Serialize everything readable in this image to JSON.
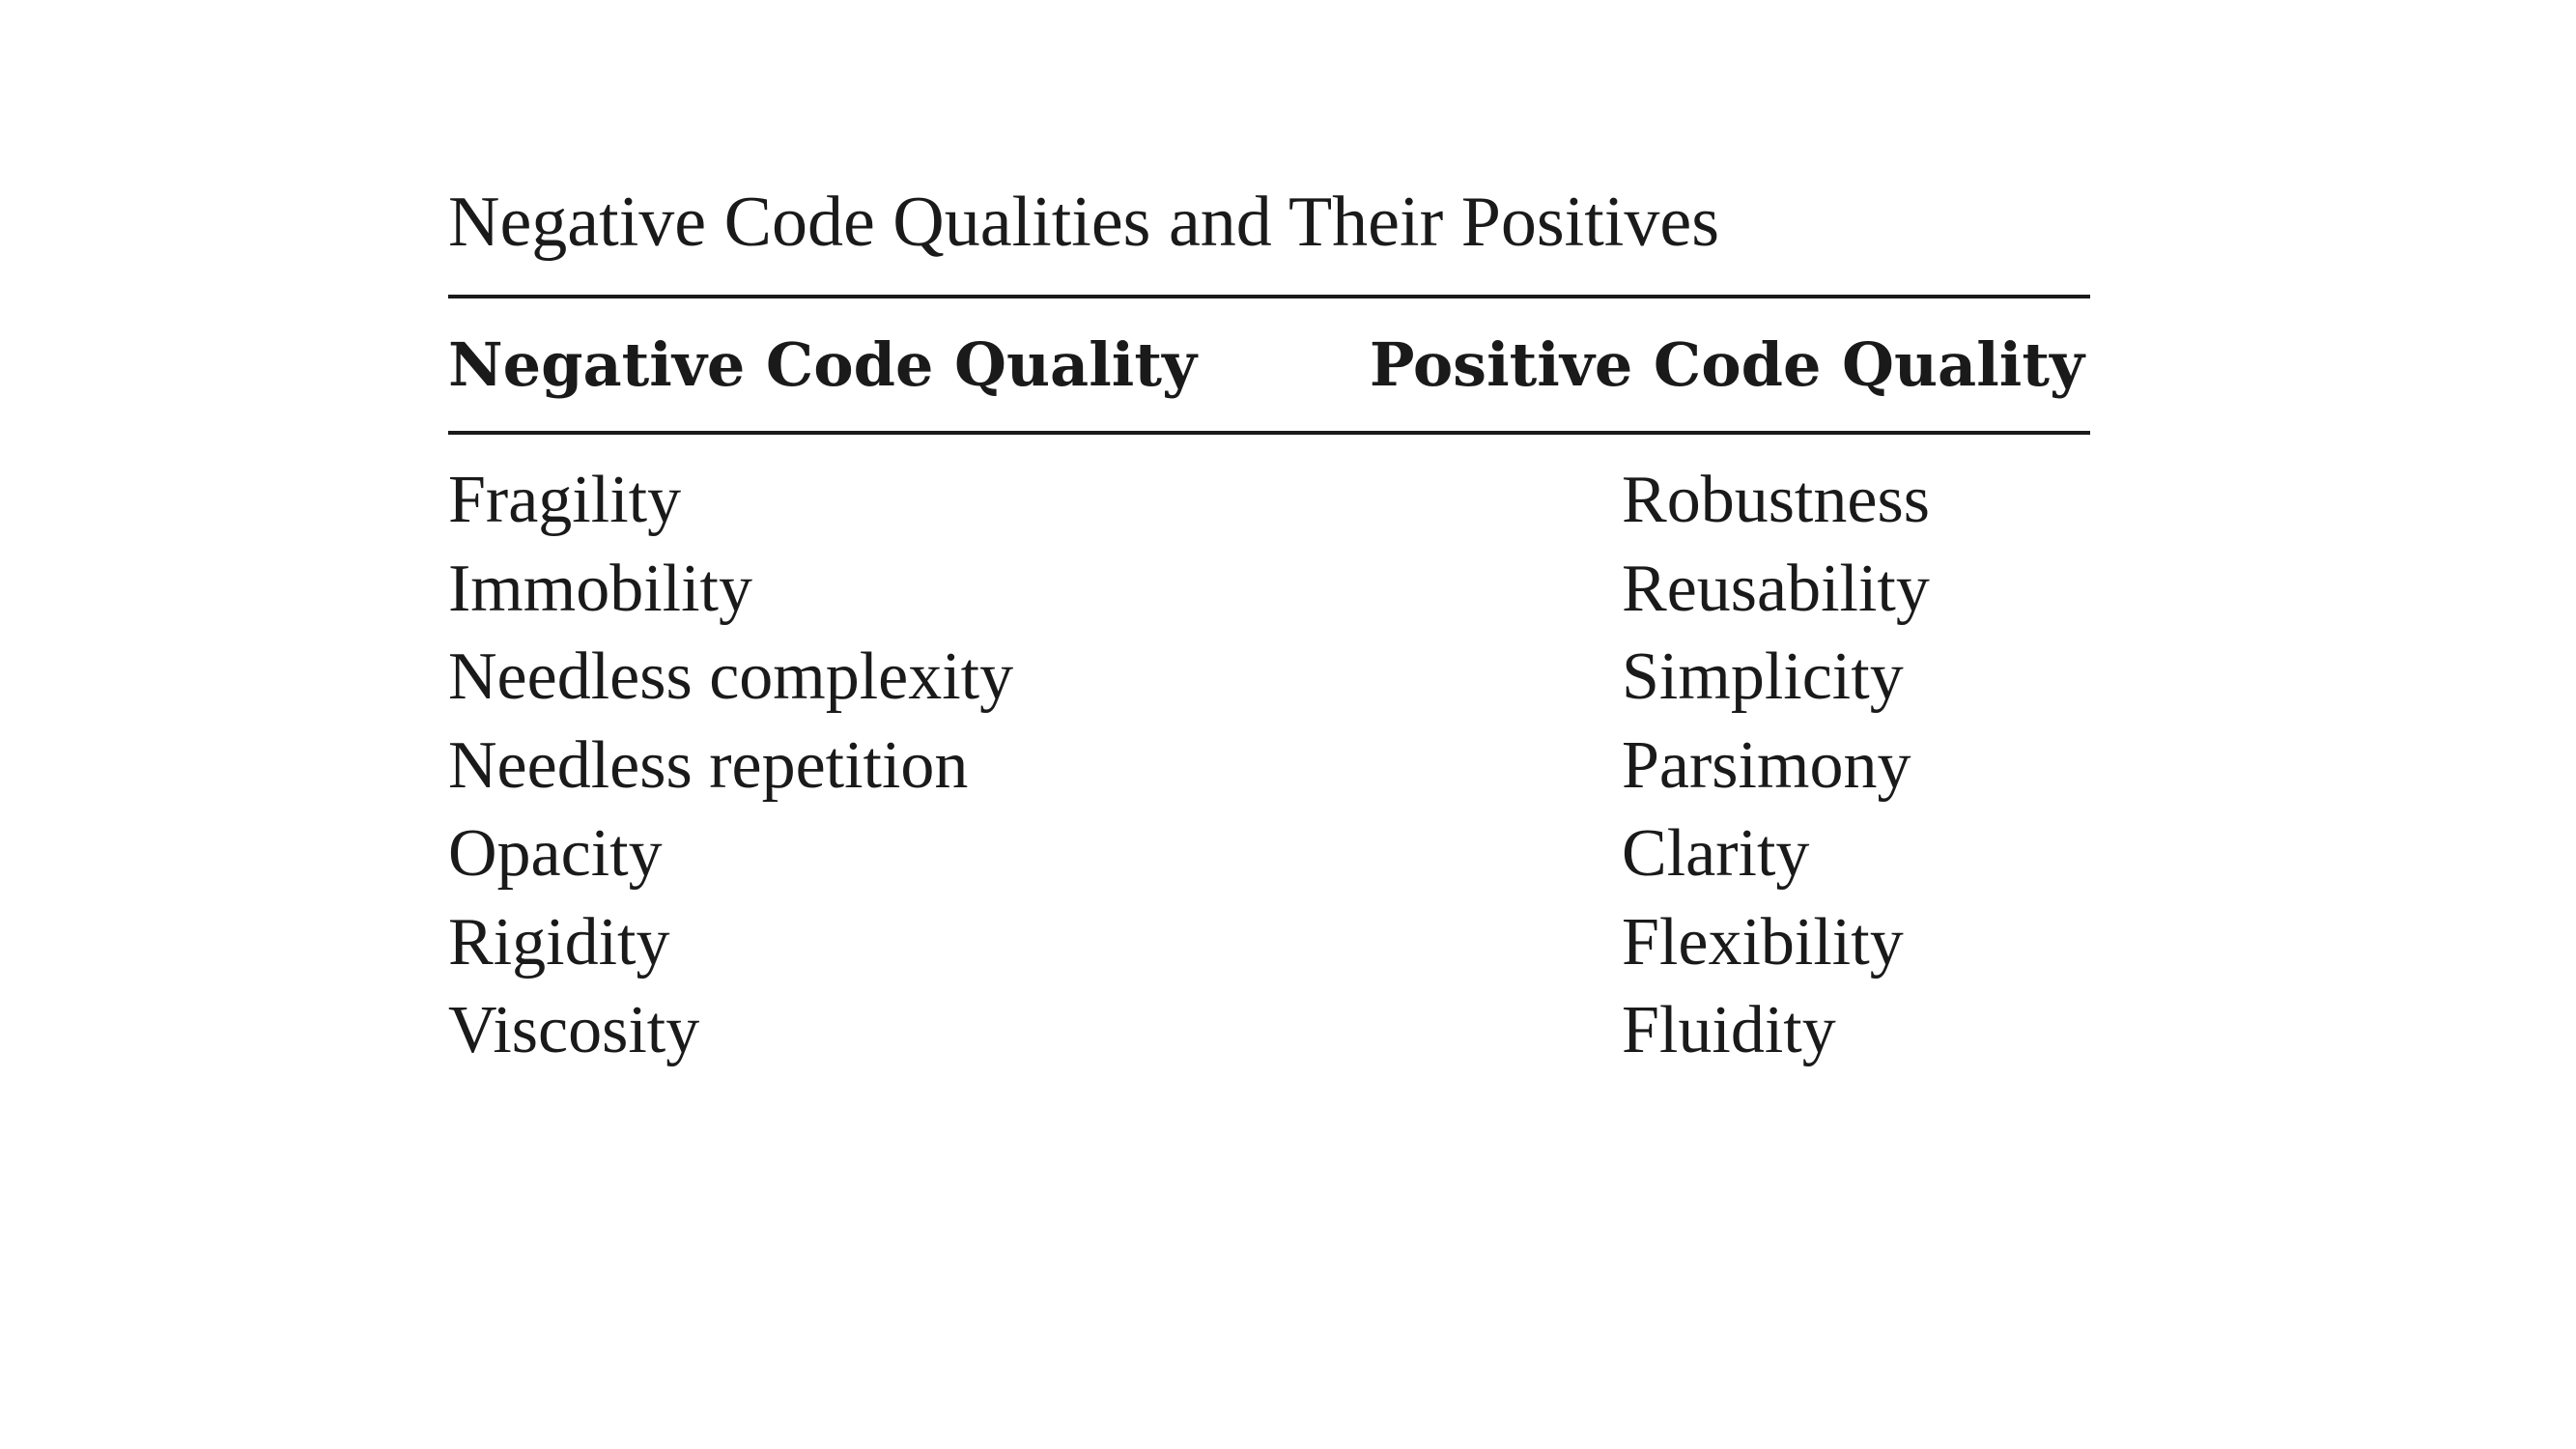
{
  "table": {
    "caption": "Negative Code Qualities and Their Positives",
    "headers": {
      "negative": "Negative Code Quality",
      "positive": "Positive Code Quality"
    },
    "rows": [
      {
        "negative": "Fragility",
        "positive": "Robustness"
      },
      {
        "negative": "Immobility",
        "positive": "Reusability"
      },
      {
        "negative": "Needless complexity",
        "positive": "Simplicity"
      },
      {
        "negative": "Needless repetition",
        "positive": "Parsimony"
      },
      {
        "negative": "Opacity",
        "positive": "Clarity"
      },
      {
        "negative": "Rigidity",
        "positive": "Flexibility"
      },
      {
        "negative": "Viscosity",
        "positive": "Fluidity"
      }
    ]
  }
}
